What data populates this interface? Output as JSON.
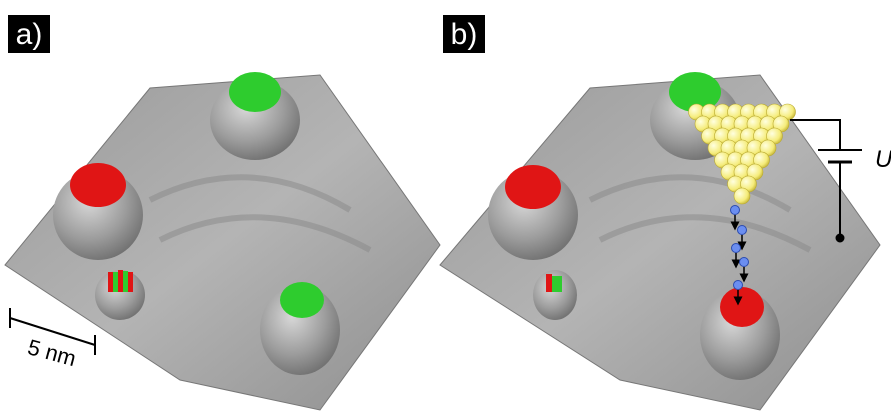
{
  "panels": [
    {
      "label": "a)",
      "scale_bar": "5 nm"
    },
    {
      "label": "b)",
      "voltage_label": "U"
    }
  ]
}
